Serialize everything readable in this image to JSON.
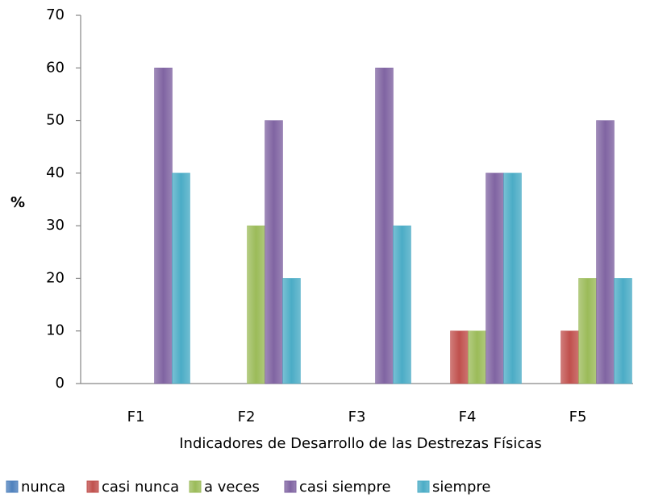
{
  "chart_data": {
    "type": "bar",
    "y_label": "%",
    "x_label": "Indicadores de Desarrollo de las Destrezas Físicas",
    "categories": [
      "F1",
      "F2",
      "F3",
      "F4",
      "F5"
    ],
    "series": [
      {
        "name": "nunca",
        "color": "#4f81bd",
        "values": [
          0,
          0,
          0,
          0,
          0
        ]
      },
      {
        "name": "casi nunca",
        "color": "#c0504d",
        "values": [
          0,
          0,
          0,
          10,
          10
        ]
      },
      {
        "name": "a veces",
        "color": "#9bbb59",
        "values": [
          0,
          30,
          0,
          10,
          20
        ]
      },
      {
        "name": "casi siempre",
        "color": "#8064a2",
        "values": [
          60,
          50,
          60,
          40,
          50
        ]
      },
      {
        "name": "siempre",
        "color": "#4bacc6",
        "values": [
          40,
          20,
          30,
          40,
          20
        ]
      }
    ],
    "ylim": [
      0,
      70
    ],
    "yticks": [
      0,
      10,
      20,
      30,
      40,
      50,
      60,
      70
    ],
    "grid": false,
    "legend": "bottom"
  }
}
